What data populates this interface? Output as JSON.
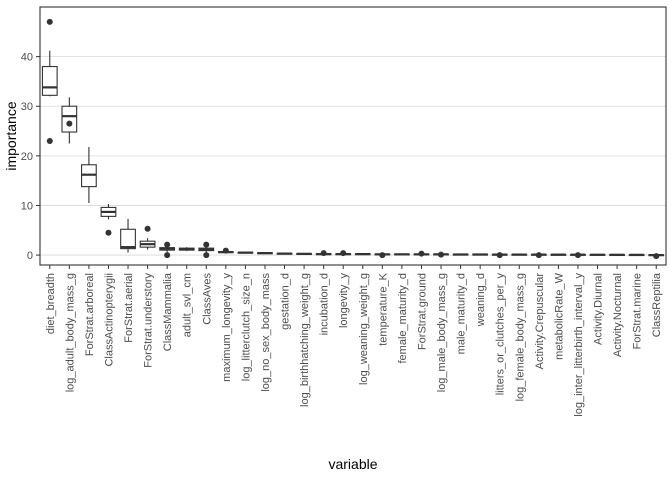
{
  "chart_data": {
    "type": "boxplot",
    "xlabel": "variable",
    "ylabel": "importance",
    "ylim": [
      -2,
      50
    ],
    "yticks": [
      0,
      10,
      20,
      30,
      40
    ],
    "grid": "horizontal major lines",
    "categories": [
      "diet_breadth",
      "log_adult_body_mass_g",
      "ForStrat.arboreal",
      "ClassActinopterygii",
      "ForStrat.aerial",
      "ForStrat.understory",
      "ClassMammalia",
      "adult_svl_cm",
      "ClassAves",
      "maximum_longevity_y",
      "log_litterclutch_size_n",
      "log_no_sex_body_mass",
      "gestation_d",
      "log_birthhatching_weight_g",
      "incubation_d",
      "longevity_y",
      "log_weaning_weight_g",
      "temperature_K",
      "female_maturity_d",
      "ForStrat.ground",
      "log_male_body_mass_g",
      "male_maturity_d",
      "weaning_d",
      "litters_or_clutches_per_y",
      "log_female_body_mass_g",
      "Activity.Crepuscular",
      "metabolicRate_W",
      "log_inter_litterbirth_interval_y",
      "Activity.Diurnal",
      "Activity.Nocturnal",
      "ForStrat.marine",
      "ClassReptilia"
    ],
    "boxes": [
      {
        "whisker_low": 32,
        "q1": 32.2,
        "median": 33.8,
        "q3": 38,
        "whisker_high": 41.2,
        "outliers": [
          47,
          23
        ]
      },
      {
        "whisker_low": 22.5,
        "q1": 24.8,
        "median": 28,
        "q3": 30,
        "whisker_high": 31.8,
        "outliers": [
          26.5
        ]
      },
      {
        "whisker_low": 10.5,
        "q1": 13.8,
        "median": 16.2,
        "q3": 18.2,
        "whisker_high": 21.8,
        "outliers": []
      },
      {
        "whisker_low": 7.2,
        "q1": 7.8,
        "median": 8.7,
        "q3": 9.6,
        "whisker_high": 10.3,
        "outliers": [
          4.5
        ]
      },
      {
        "whisker_low": 0.5,
        "q1": 1.3,
        "median": 1.6,
        "q3": 5.2,
        "whisker_high": 7.3,
        "outliers": []
      },
      {
        "whisker_low": 1.1,
        "q1": 1.6,
        "median": 2.2,
        "q3": 2.8,
        "whisker_high": 3.4,
        "outliers": [
          5.3
        ]
      },
      {
        "whisker_low": 0.6,
        "q1": 1.0,
        "median": 1.3,
        "q3": 1.5,
        "whisker_high": 1.9,
        "outliers": [
          0.0,
          2.1
        ]
      },
      {
        "whisker_low": 0.8,
        "q1": 1.0,
        "median": 1.2,
        "q3": 1.4,
        "whisker_high": 1.6,
        "outliers": []
      },
      {
        "whisker_low": 0.5,
        "q1": 0.9,
        "median": 1.1,
        "q3": 1.4,
        "whisker_high": 1.7,
        "outliers": [
          0.0,
          2.1
        ]
      },
      {
        "whisker_low": 0.4,
        "q1": 0.5,
        "median": 0.6,
        "q3": 0.7,
        "whisker_high": 0.8,
        "outliers": [
          0.9
        ]
      },
      {
        "whisker_low": 0.4,
        "q1": 0.45,
        "median": 0.5,
        "q3": 0.55,
        "whisker_high": 0.6,
        "outliers": []
      },
      {
        "whisker_low": 0.3,
        "q1": 0.35,
        "median": 0.4,
        "q3": 0.45,
        "whisker_high": 0.5,
        "outliers": []
      },
      {
        "whisker_low": 0.2,
        "q1": 0.25,
        "median": 0.3,
        "q3": 0.35,
        "whisker_high": 0.4,
        "outliers": []
      },
      {
        "whisker_low": 0.15,
        "q1": 0.2,
        "median": 0.25,
        "q3": 0.3,
        "whisker_high": 0.35,
        "outliers": []
      },
      {
        "whisker_low": 0.1,
        "q1": 0.15,
        "median": 0.2,
        "q3": 0.25,
        "whisker_high": 0.3,
        "outliers": [
          0.4
        ]
      },
      {
        "whisker_low": 0.1,
        "q1": 0.15,
        "median": 0.2,
        "q3": 0.25,
        "whisker_high": 0.3,
        "outliers": [
          0.4
        ]
      },
      {
        "whisker_low": 0.1,
        "q1": 0.15,
        "median": 0.2,
        "q3": 0.25,
        "whisker_high": 0.3,
        "outliers": []
      },
      {
        "whisker_low": 0.05,
        "q1": 0.1,
        "median": 0.15,
        "q3": 0.2,
        "whisker_high": 0.25,
        "outliers": [
          0.0
        ]
      },
      {
        "whisker_low": 0.05,
        "q1": 0.1,
        "median": 0.15,
        "q3": 0.2,
        "whisker_high": 0.25,
        "outliers": []
      },
      {
        "whisker_low": 0.05,
        "q1": 0.1,
        "median": 0.15,
        "q3": 0.2,
        "whisker_high": 0.25,
        "outliers": [
          0.3
        ]
      },
      {
        "whisker_low": 0.05,
        "q1": 0.1,
        "median": 0.15,
        "q3": 0.2,
        "whisker_high": 0.25,
        "outliers": [
          0.1
        ]
      },
      {
        "whisker_low": 0.05,
        "q1": 0.08,
        "median": 0.12,
        "q3": 0.16,
        "whisker_high": 0.2,
        "outliers": []
      },
      {
        "whisker_low": 0.05,
        "q1": 0.08,
        "median": 0.12,
        "q3": 0.16,
        "whisker_high": 0.2,
        "outliers": []
      },
      {
        "whisker_low": 0.04,
        "q1": 0.07,
        "median": 0.1,
        "q3": 0.14,
        "whisker_high": 0.18,
        "outliers": [
          0.0
        ]
      },
      {
        "whisker_low": 0.04,
        "q1": 0.07,
        "median": 0.1,
        "q3": 0.14,
        "whisker_high": 0.18,
        "outliers": []
      },
      {
        "whisker_low": 0.03,
        "q1": 0.06,
        "median": 0.1,
        "q3": 0.13,
        "whisker_high": 0.16,
        "outliers": [
          0.0
        ]
      },
      {
        "whisker_low": 0.03,
        "q1": 0.06,
        "median": 0.09,
        "q3": 0.12,
        "whisker_high": 0.15,
        "outliers": []
      },
      {
        "whisker_low": 0.02,
        "q1": 0.05,
        "median": 0.08,
        "q3": 0.11,
        "whisker_high": 0.14,
        "outliers": [
          0.0
        ]
      },
      {
        "whisker_low": 0.02,
        "q1": 0.04,
        "median": 0.07,
        "q3": 0.1,
        "whisker_high": 0.12,
        "outliers": []
      },
      {
        "whisker_low": 0.02,
        "q1": 0.04,
        "median": 0.06,
        "q3": 0.08,
        "whisker_high": 0.1,
        "outliers": []
      },
      {
        "whisker_low": 0.01,
        "q1": 0.03,
        "median": 0.05,
        "q3": 0.07,
        "whisker_high": 0.09,
        "outliers": []
      },
      {
        "whisker_low": -0.1,
        "q1": -0.05,
        "median": 0.0,
        "q3": 0.05,
        "whisker_high": 0.1,
        "outliers": [
          -0.2
        ]
      }
    ]
  }
}
